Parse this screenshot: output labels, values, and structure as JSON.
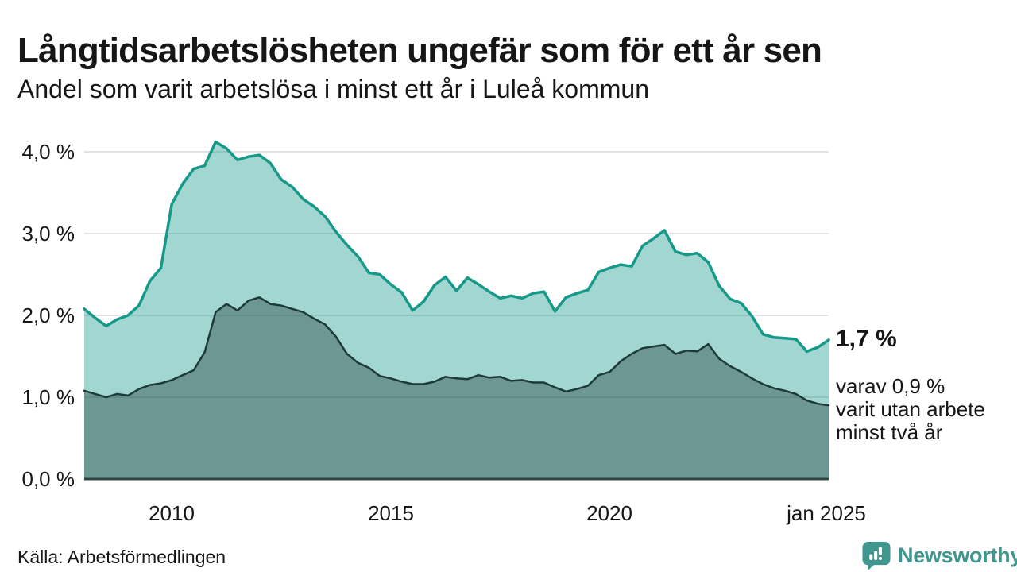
{
  "header": {
    "title": "Långtidsarbetslösheten ungefär som för ett år sen",
    "subtitle": "Andel som varit arbetslösa i minst ett år i Luleå kommun"
  },
  "annotation": {
    "value": "1,7 %",
    "detail_lines": [
      "varav 0,9 %",
      "varit utan arbete",
      "minst två år"
    ]
  },
  "footer": {
    "source": "Källa: Arbetsförmedlingen",
    "brand": "Newsworthy"
  },
  "colors": {
    "text": "#161616",
    "line_total": "#17998a",
    "fill_total": "rgba(23,153,138,0.40)",
    "line_two_years": "#1d3a38",
    "fill_two_years": "rgba(29,58,56,0.40)",
    "gridline": "#d9d9d9",
    "axis_line": "#2e4643",
    "brand": "#3f968e"
  },
  "chart_data": {
    "type": "area",
    "title": "Långtidsarbetslösheten ungefär som för ett år sen",
    "subtitle": "Andel som varit arbetslösa i minst ett år i Luleå kommun",
    "unit": "%",
    "grid": "horizontal",
    "legend_position": "none",
    "ylim": [
      0,
      4.3
    ],
    "ytick_values": [
      0,
      1,
      2,
      3,
      4
    ],
    "ytick_labels": [
      "0,0 %",
      "1,0 %",
      "2,0 %",
      "3,0 %",
      "4,0 %"
    ],
    "xticks": [
      {
        "value": 2010,
        "label": "2010"
      },
      {
        "value": 2015,
        "label": "2015"
      },
      {
        "value": 2020,
        "label": "2020"
      },
      {
        "value": 2025,
        "label": "jan 2025"
      }
    ],
    "x_years": [
      2008,
      2008.25,
      2008.5,
      2008.75,
      2009,
      2009.25,
      2009.5,
      2009.75,
      2010,
      2010.25,
      2010.5,
      2010.75,
      2011,
      2011.25,
      2011.5,
      2011.75,
      2012,
      2012.25,
      2012.5,
      2012.75,
      2013,
      2013.25,
      2013.5,
      2013.75,
      2014,
      2014.25,
      2014.5,
      2014.75,
      2015,
      2015.25,
      2015.5,
      2015.75,
      2016,
      2016.25,
      2016.5,
      2016.75,
      2017,
      2017.25,
      2017.5,
      2017.75,
      2018,
      2018.25,
      2018.5,
      2018.75,
      2019,
      2019.25,
      2019.5,
      2019.75,
      2020,
      2020.25,
      2020.5,
      2020.75,
      2021,
      2021.25,
      2021.5,
      2021.75,
      2022,
      2022.25,
      2022.5,
      2022.75,
      2023,
      2023.25,
      2023.5,
      2023.75,
      2024,
      2024.25,
      2024.5,
      2024.75,
      2025
    ],
    "series": [
      {
        "name": "Arbetslösa minst ett år",
        "color": "#17998a",
        "last_value_label": "1,7 %",
        "values": [
          2.08,
          1.97,
          1.87,
          1.95,
          2.0,
          2.12,
          2.42,
          2.58,
          3.36,
          3.61,
          3.79,
          3.83,
          4.12,
          4.04,
          3.9,
          3.94,
          3.96,
          3.86,
          3.66,
          3.57,
          3.42,
          3.33,
          3.21,
          3.02,
          2.86,
          2.72,
          2.52,
          2.5,
          2.38,
          2.28,
          2.06,
          2.17,
          2.37,
          2.47,
          2.3,
          2.46,
          2.38,
          2.29,
          2.21,
          2.24,
          2.21,
          2.27,
          2.29,
          2.05,
          2.22,
          2.27,
          2.31,
          2.53,
          2.58,
          2.62,
          2.6,
          2.85,
          2.94,
          3.04,
          2.78,
          2.74,
          2.76,
          2.65,
          2.36,
          2.2,
          2.15,
          1.99,
          1.77,
          1.73,
          1.72,
          1.71,
          1.56,
          1.61,
          1.7
        ]
      },
      {
        "name": "Varav utan arbete minst två år",
        "color": "#1d3a38",
        "last_value_label": "0,9 %",
        "values": [
          1.08,
          1.04,
          1.0,
          1.04,
          1.02,
          1.1,
          1.15,
          1.17,
          1.21,
          1.27,
          1.33,
          1.55,
          2.04,
          2.14,
          2.06,
          2.18,
          2.22,
          2.14,
          2.12,
          2.08,
          2.04,
          1.96,
          1.89,
          1.74,
          1.53,
          1.42,
          1.36,
          1.26,
          1.23,
          1.19,
          1.16,
          1.16,
          1.19,
          1.25,
          1.23,
          1.22,
          1.27,
          1.24,
          1.25,
          1.2,
          1.21,
          1.18,
          1.18,
          1.12,
          1.07,
          1.1,
          1.14,
          1.27,
          1.31,
          1.44,
          1.53,
          1.6,
          1.62,
          1.64,
          1.53,
          1.57,
          1.56,
          1.65,
          1.47,
          1.38,
          1.31,
          1.23,
          1.16,
          1.11,
          1.08,
          1.04,
          0.96,
          0.92,
          0.9
        ]
      }
    ]
  }
}
